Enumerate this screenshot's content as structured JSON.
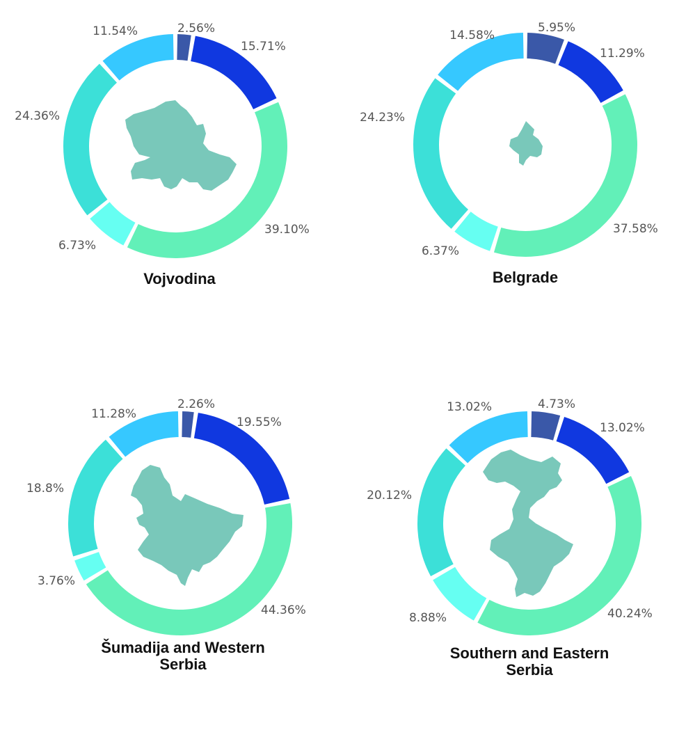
{
  "chart_data": [
    {
      "type": "donut",
      "title": "Vojvodina",
      "values": [
        2.56,
        15.71,
        39.1,
        6.73,
        24.36,
        11.54
      ],
      "labels": [
        "2.56%",
        "15.71%",
        "39.10%",
        "6.73%",
        "24.36%",
        "11.54%"
      ]
    },
    {
      "type": "donut",
      "title": "Belgrade",
      "values": [
        5.95,
        11.29,
        37.58,
        6.37,
        24.23,
        14.58
      ],
      "labels": [
        "5.95%",
        "11.29%",
        "37.58%",
        "6.37%",
        "24.23%",
        "14.58%"
      ]
    },
    {
      "type": "donut",
      "title": "Šumadija and Western Serbia",
      "title_lines": [
        "Šumadija and Western",
        "Serbia"
      ],
      "values": [
        2.26,
        19.55,
        44.36,
        3.76,
        18.8,
        11.28
      ],
      "labels": [
        "2.26%",
        "19.55%",
        "44.36%",
        "3.76%",
        "18.8%",
        "11.28%"
      ]
    },
    {
      "type": "donut",
      "title": "Southern and Eastern Serbia",
      "title_lines": [
        "Southern and Eastern",
        "Serbia"
      ],
      "values": [
        4.73,
        13.02,
        40.24,
        8.88,
        20.12,
        13.02
      ],
      "labels": [
        "4.73%",
        "13.02%",
        "40.24%",
        "8.88%",
        "20.12%",
        "13.02%"
      ]
    }
  ],
  "colors": {
    "segments": [
      "#3a58a8",
      "#1038e0",
      "#62f0b8",
      "#66fff2",
      "#3ce0d8",
      "#36c8ff"
    ],
    "map_fill": "#79c8ba",
    "label_text": "#555555",
    "title_text": "#111111"
  }
}
